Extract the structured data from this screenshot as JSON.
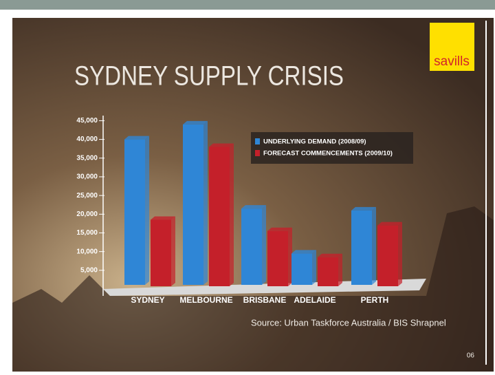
{
  "logo": "savills",
  "page_number": "06",
  "chart_data": {
    "type": "bar",
    "title": "SYDNEY SUPPLY CRISIS",
    "source": "Source: Urban Taskforce Australia / BIS Shrapnel",
    "categories": [
      "SYDNEY",
      "MELBOURNE",
      "BRISBANE",
      "ADELAIDE",
      "PERTH"
    ],
    "series": [
      {
        "name": "UNDERLYING DEMAND (2008/09)",
        "color": "#2f86d6",
        "values": [
          40000,
          44000,
          21500,
          9500,
          21000
        ]
      },
      {
        "name": "FORECAST COMMENCEMENTS (2009/10)",
        "color": "#c4202a",
        "values": [
          18500,
          38000,
          15500,
          8500,
          17000
        ]
      }
    ],
    "ylim": [
      0,
      46000
    ],
    "yticks": [
      {
        "value": 5000,
        "label": "5,000"
      },
      {
        "value": 10000,
        "label": "10,000"
      },
      {
        "value": 15000,
        "label": "15,000"
      },
      {
        "value": 20000,
        "label": "20,000"
      },
      {
        "value": 25000,
        "label": "25,000"
      },
      {
        "value": 30000,
        "label": "30,000"
      },
      {
        "value": 35000,
        "label": "35,000"
      },
      {
        "value": 40000,
        "label": "40,000"
      },
      {
        "value": 45000,
        "label": "45,000"
      }
    ],
    "legend": "upper-right"
  }
}
